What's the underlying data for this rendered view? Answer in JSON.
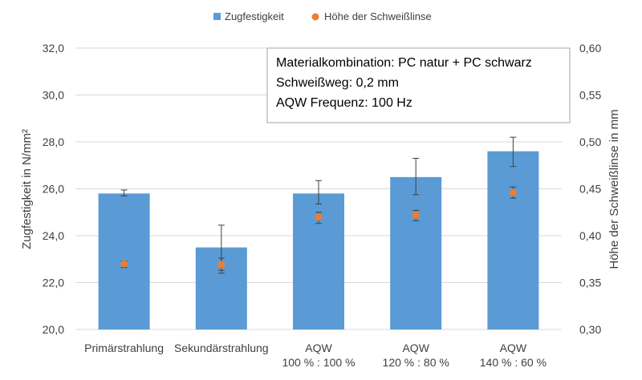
{
  "chart_data": {
    "type": "bar",
    "categories": [
      [
        "Primärstrahlung"
      ],
      [
        "Sekundärstrahlung"
      ],
      [
        "AQW",
        "100 % : 100 %"
      ],
      [
        "AQW",
        "120 % : 80 %"
      ],
      [
        "AQW",
        "140 % : 60 %"
      ]
    ],
    "series": [
      {
        "name": "Zugfestigkeit",
        "kind": "bar",
        "axis": "left",
        "color": "#5b9bd5",
        "values": [
          25.8,
          23.5,
          25.8,
          26.5,
          27.6
        ],
        "err_low": [
          25.7,
          22.4,
          25.35,
          25.75,
          26.95
        ],
        "err_high": [
          25.95,
          24.45,
          26.35,
          27.3,
          28.2
        ]
      },
      {
        "name": "Höhe der Schweißlinse",
        "kind": "scatter",
        "axis": "right",
        "color": "#ed7d31",
        "values": [
          0.37,
          0.369,
          0.42,
          0.422,
          0.446
        ],
        "err_low": [
          0.366,
          0.363,
          0.413,
          0.416,
          0.44
        ],
        "err_high": [
          0.373,
          0.376,
          0.425,
          0.427,
          0.452
        ]
      }
    ],
    "y_left": {
      "label": "Zugfestigkeit in N/mm²",
      "min": 20,
      "max": 32,
      "ticks": [
        20,
        22,
        24,
        26,
        28,
        30,
        32
      ],
      "tick_labels": [
        "20,0",
        "22,0",
        "24,0",
        "26,0",
        "28,0",
        "30,0",
        "32,0"
      ]
    },
    "y_right": {
      "label": "Höhe der Schweißlinse in mm",
      "min": 0.3,
      "max": 0.6,
      "ticks": [
        0.3,
        0.35,
        0.4,
        0.45,
        0.5,
        0.55,
        0.6
      ],
      "tick_labels": [
        "0,30",
        "0,35",
        "0,40",
        "0,45",
        "0,50",
        "0,55",
        "0,60"
      ]
    },
    "annotation": [
      "Materialkombination: PC natur + PC schwarz",
      "Schweißweg: 0,2 mm",
      "AQW Frequenz: 100 Hz"
    ],
    "legend_position": "top-center",
    "grid": "horizontal"
  }
}
